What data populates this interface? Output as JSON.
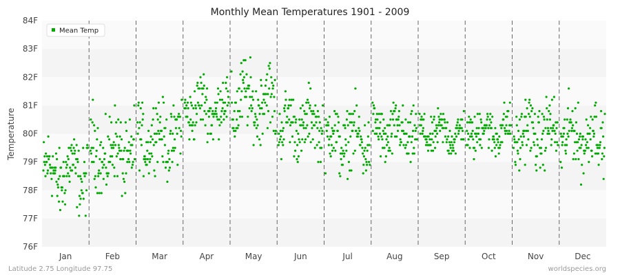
{
  "chart_data": {
    "type": "scatter",
    "title": "Monthly Mean Temperatures 1901 - 2009",
    "ylabel": "Temperature",
    "xlabel": "",
    "categories": [
      "Jan",
      "Feb",
      "Mar",
      "Apr",
      "May",
      "Jun",
      "Jul",
      "Aug",
      "Sep",
      "Oct",
      "Nov",
      "Dec"
    ],
    "y_ticks": [
      "76F",
      "77F",
      "78F",
      "79F",
      "80F",
      "81F",
      "82F",
      "83F",
      "84F"
    ],
    "ylim": [
      76,
      84
    ],
    "legend": {
      "position": "top-left",
      "entries": [
        "Mean Temp"
      ]
    },
    "grid": "alternating horizontal bands, dashed month separators",
    "series": [
      {
        "name": "Mean Temp",
        "color": "#00aa00",
        "points_per_month": 109,
        "monthly_summary": [
          {
            "month": "Jan",
            "min": 76.6,
            "max": 80.3,
            "typical": 78.6
          },
          {
            "month": "Feb",
            "min": 77.4,
            "max": 81.5,
            "typical": 79.3
          },
          {
            "month": "Mar",
            "min": 78.3,
            "max": 81.9,
            "typical": 79.9
          },
          {
            "month": "Apr",
            "min": 79.7,
            "max": 82.8,
            "typical": 80.9
          },
          {
            "month": "May",
            "min": 79.6,
            "max": 83.5,
            "typical": 81.1
          },
          {
            "month": "Jun",
            "min": 79.0,
            "max": 82.2,
            "typical": 80.3
          },
          {
            "month": "Jul",
            "min": 78.4,
            "max": 81.9,
            "typical": 79.8
          },
          {
            "month": "Aug",
            "min": 78.8,
            "max": 81.7,
            "typical": 80.0
          },
          {
            "month": "Sep",
            "min": 79.1,
            "max": 81.2,
            "typical": 80.0
          },
          {
            "month": "Oct",
            "min": 79.1,
            "max": 81.5,
            "typical": 80.1
          },
          {
            "month": "Nov",
            "min": 78.6,
            "max": 82.0,
            "typical": 80.0
          },
          {
            "month": "Dec",
            "min": 78.2,
            "max": 81.7,
            "typical": 79.9
          }
        ]
      }
    ]
  },
  "footer": {
    "left": "Latitude 2.75 Longitude 97.75",
    "right": "worldspecies.org"
  }
}
